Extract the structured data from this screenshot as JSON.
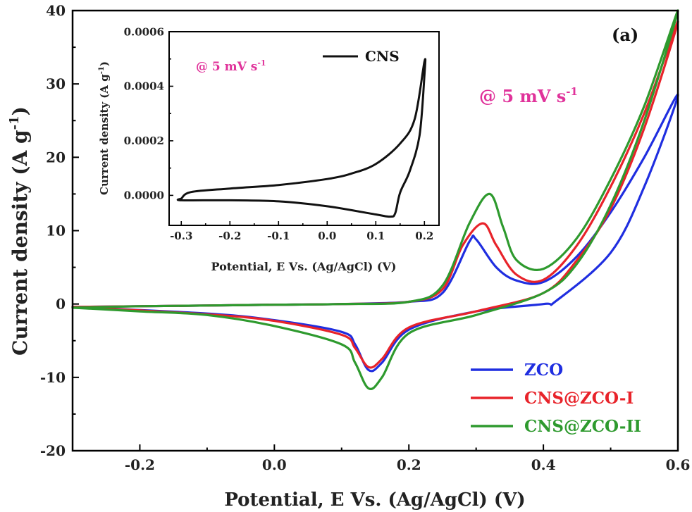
{
  "chart_data": [
    {
      "type": "line",
      "panel_label": "(a)",
      "xlabel": "Potential, E Vs. (Ag/AgCl) (V)",
      "ylabel": "Current density (A g",
      "ylabel_sup": "-1",
      "ylabel_tail": ")",
      "annotation": {
        "text": "@ 5 mV s",
        "sup": "-1",
        "color": "#e0329a"
      },
      "xlim": [
        -0.3,
        0.6
      ],
      "ylim": [
        -20,
        40
      ],
      "xticks": [
        -0.2,
        0.0,
        0.2,
        0.4,
        0.6
      ],
      "xtick_labels": [
        "-0.2",
        "0.0",
        "0.2",
        "0.4",
        "0.6"
      ],
      "yticks": [
        -20,
        -10,
        0,
        10,
        20,
        30,
        40
      ],
      "ytick_labels": [
        "-20",
        "-10",
        "0",
        "10",
        "20",
        "30",
        "40"
      ],
      "legend_position": "bottom-right",
      "series": [
        {
          "name": "ZCO",
          "color": "#1f2ee0",
          "x": [
            -0.3,
            -0.1,
            0.0,
            0.1,
            0.12,
            0.14,
            0.16,
            0.2,
            0.3,
            0.4,
            0.42,
            0.5,
            0.55,
            0.6,
            0.55,
            0.5,
            0.45,
            0.4,
            0.36,
            0.33,
            0.3,
            0.29,
            0.25,
            0.2,
            0.1,
            0.0,
            -0.1,
            -0.2,
            -0.3
          ],
          "y": [
            -0.4,
            -1.3,
            -2.2,
            -3.8,
            -5.5,
            -9.0,
            -8.0,
            -3.5,
            -1.0,
            0.0,
            0.5,
            7.0,
            16.0,
            28.5,
            20.0,
            12.5,
            6.5,
            3.0,
            3.2,
            5.0,
            8.8,
            8.5,
            1.5,
            0.3,
            0.0,
            -0.1,
            -0.2,
            -0.3,
            -0.4
          ]
        },
        {
          "name": "CNS@ZCO-I",
          "color": "#e8232a",
          "x": [
            -0.3,
            -0.1,
            0.0,
            0.1,
            0.12,
            0.14,
            0.16,
            0.2,
            0.3,
            0.4,
            0.45,
            0.5,
            0.55,
            0.6,
            0.55,
            0.5,
            0.45,
            0.4,
            0.36,
            0.33,
            0.31,
            0.28,
            0.25,
            0.2,
            0.1,
            0.0,
            -0.1,
            -0.2,
            -0.3
          ],
          "y": [
            -0.4,
            -1.4,
            -2.3,
            -4.2,
            -6.0,
            -8.6,
            -7.5,
            -3.2,
            -1.0,
            1.5,
            6.0,
            13.0,
            24.0,
            38.5,
            26.0,
            16.0,
            8.0,
            3.3,
            4.0,
            8.0,
            11.0,
            8.0,
            2.0,
            0.3,
            0.0,
            -0.1,
            -0.2,
            -0.3,
            -0.4
          ]
        },
        {
          "name": "CNS@ZCO-II",
          "color": "#2e9a2e",
          "x": [
            -0.3,
            -0.2,
            -0.1,
            0.0,
            0.1,
            0.12,
            0.14,
            0.16,
            0.2,
            0.3,
            0.4,
            0.45,
            0.5,
            0.55,
            0.6,
            0.55,
            0.5,
            0.45,
            0.4,
            0.36,
            0.34,
            0.32,
            0.29,
            0.25,
            0.2,
            0.1,
            0.0,
            -0.1,
            -0.2,
            -0.3
          ],
          "y": [
            -0.5,
            -1.0,
            -1.5,
            -3.0,
            -5.5,
            -8.0,
            -11.5,
            -10.0,
            -4.0,
            -1.5,
            1.5,
            5.5,
            13.5,
            25.0,
            40.0,
            27.0,
            17.0,
            9.0,
            4.8,
            6.0,
            10.5,
            15.0,
            11.0,
            2.5,
            0.3,
            0.0,
            -0.1,
            -0.2,
            -0.3,
            -0.5
          ]
        }
      ]
    },
    {
      "type": "line",
      "xlabel": "Potential, E Vs. (Ag/AgCl) (V)",
      "ylabel": "Current density (A g",
      "ylabel_sup": "-1",
      "ylabel_tail": ")",
      "annotation": {
        "text": "@ 5 mV s",
        "sup": "-1",
        "color": "#e0329a"
      },
      "xlim": [
        -0.325,
        0.23
      ],
      "ylim": [
        -0.00011,
        0.0006
      ],
      "xticks": [
        -0.3,
        -0.2,
        -0.1,
        0.0,
        0.1,
        0.2
      ],
      "xtick_labels": [
        "-0.3",
        "-0.2",
        "-0.1",
        "0.0",
        "0.1",
        "0.2"
      ],
      "yticks": [
        0.0,
        0.0002,
        0.0004,
        0.0006
      ],
      "ytick_labels": [
        "0.0000",
        "0.0002",
        "0.0004",
        "0.0006"
      ],
      "legend_position": "top-right",
      "series": [
        {
          "name": "CNS",
          "color": "#111111",
          "x": [
            -0.3,
            -0.28,
            -0.2,
            -0.1,
            0.0,
            0.05,
            0.1,
            0.15,
            0.18,
            0.2,
            0.2,
            0.19,
            0.17,
            0.15,
            0.14,
            0.13,
            0.1,
            0.0,
            -0.1,
            -0.2,
            -0.3,
            -0.3
          ],
          "y": [
            -1.2e-05,
            1.2e-05,
            2.5e-05,
            3.8e-05,
            6e-05,
            8e-05,
            0.000115,
            0.00019,
            0.00028,
            0.00049,
            0.00044,
            0.00022,
            9e-05,
            1e-05,
            -6.5e-05,
            -7.8e-05,
            -7e-05,
            -4e-05,
            -2.2e-05,
            -1.8e-05,
            -1.8e-05,
            -1.2e-05
          ]
        }
      ]
    }
  ]
}
